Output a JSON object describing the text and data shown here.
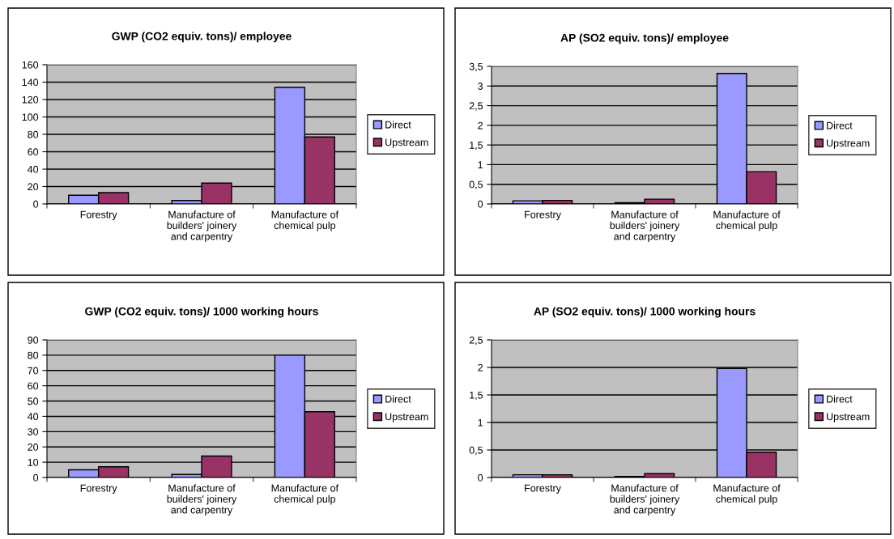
{
  "chart_data": [
    {
      "type": "bar",
      "title": "GWP (CO2 equiv. tons)/ employee",
      "categories": [
        "Forestry",
        "Manufacture of\nbuilders' joinery\nand carpentry",
        "Manufacture of\nchemical pulp"
      ],
      "series": [
        {
          "name": "Direct",
          "color": "#9999ff",
          "values": [
            10,
            4,
            134
          ]
        },
        {
          "name": "Upstream",
          "color": "#993366",
          "values": [
            13,
            24,
            77
          ]
        }
      ],
      "ylim": [
        0,
        160
      ],
      "yticks": [
        0,
        20,
        40,
        60,
        80,
        100,
        120,
        140,
        160
      ],
      "grid": "y",
      "legend": "right"
    },
    {
      "type": "bar",
      "title": "AP (SO2 equiv. tons)/ employee",
      "categories": [
        "Forestry",
        "Manufacture of\nbuilders' joinery\nand carpentry",
        "Manufacture of\nchemical pulp"
      ],
      "series": [
        {
          "name": "Direct",
          "color": "#9999ff",
          "values": [
            0.08,
            0.03,
            3.32
          ]
        },
        {
          "name": "Upstream",
          "color": "#993366",
          "values": [
            0.09,
            0.12,
            0.82
          ]
        }
      ],
      "ylim": [
        0,
        3.5
      ],
      "yticks": [
        0,
        {
          "value": 0.5,
          "label": "0,5"
        },
        1,
        {
          "value": 1.5,
          "label": "1,5"
        },
        2,
        {
          "value": 2.5,
          "label": "2,5"
        },
        3,
        {
          "value": 3.5,
          "label": "3,5"
        }
      ],
      "grid": "y",
      "legend": "right"
    },
    {
      "type": "bar",
      "title": "GWP (CO2 equiv. tons)/ 1000 working hours",
      "categories": [
        "Forestry",
        "Manufacture of\nbuilders' joinery\nand carpentry",
        "Manufacture of\nchemical pulp"
      ],
      "series": [
        {
          "name": "Direct",
          "color": "#9999ff",
          "values": [
            5,
            2,
            80
          ]
        },
        {
          "name": "Upstream",
          "color": "#993366",
          "values": [
            7,
            14,
            43
          ]
        }
      ],
      "ylim": [
        0,
        90
      ],
      "yticks": [
        0,
        10,
        20,
        30,
        40,
        50,
        60,
        70,
        80,
        90
      ],
      "grid": "y",
      "legend": "right"
    },
    {
      "type": "bar",
      "title": "AP (SO2 equiv. tons)/ 1000 working hours",
      "categories": [
        "Forestry",
        "Manufacture of\nbuilders' joinery\nand carpentry",
        "Manufacture of\nchemical pulp"
      ],
      "series": [
        {
          "name": "Direct",
          "color": "#9999ff",
          "values": [
            0.05,
            0.02,
            1.98
          ]
        },
        {
          "name": "Upstream",
          "color": "#993366",
          "values": [
            0.05,
            0.07,
            0.46
          ]
        }
      ],
      "ylim": [
        0,
        2.5
      ],
      "yticks": [
        0,
        {
          "value": 0.5,
          "label": "0,5"
        },
        1,
        {
          "value": 1.5,
          "label": "1,5"
        },
        2,
        {
          "value": 2.5,
          "label": "2,5"
        }
      ],
      "grid": "y",
      "legend": "right"
    }
  ]
}
